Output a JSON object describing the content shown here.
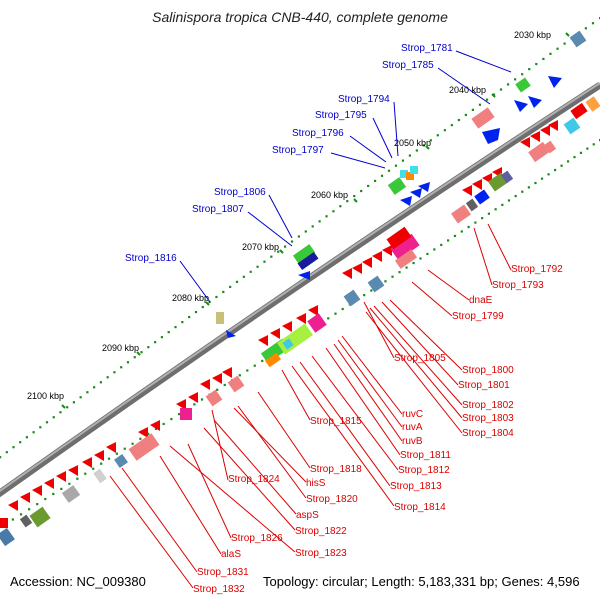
{
  "title": "Salinispora tropica CNB-440, complete genome",
  "footer": {
    "accession": "Accession: NC_009380",
    "summary": "Topology: circular; Length: 5,183,331 bp; Genes: 4,596"
  },
  "colors": {
    "backbone": "#7b7b7b",
    "forward_label": "#0000cc",
    "reverse_label": "#dd0000",
    "tick": "#1a8a1a"
  },
  "scale_labels": [
    "2030 kbp",
    "2040 kbp",
    "2050 kbp",
    "2060 kbp",
    "2070 kbp",
    "2080 kbp",
    "2090 kbp",
    "2100 kbp"
  ],
  "forward_labels": [
    "Strop_1781",
    "Strop_1785",
    "Strop_1794",
    "Strop_1795",
    "Strop_1796",
    "Strop_1797",
    "Strop_1806",
    "Strop_1807",
    "Strop_1816"
  ],
  "reverse_labels": [
    "Strop_1792",
    "Strop_1793",
    "dnaE",
    "Strop_1799",
    "Strop_1805",
    "Strop_1800",
    "Strop_1801",
    "Strop_1802",
    "Strop_1803",
    "Strop_1804",
    "ruvC",
    "ruvA",
    "ruvB",
    "Strop_1811",
    "Strop_1812",
    "Strop_1813",
    "Strop_1814",
    "Strop_1815",
    "Strop_1818",
    "Strop_1824",
    "hisS",
    "Strop_1820",
    "aspS",
    "Strop_1822",
    "Strop_1826",
    "Strop_1823",
    "alaS",
    "Strop_1831",
    "Strop_1832"
  ]
}
